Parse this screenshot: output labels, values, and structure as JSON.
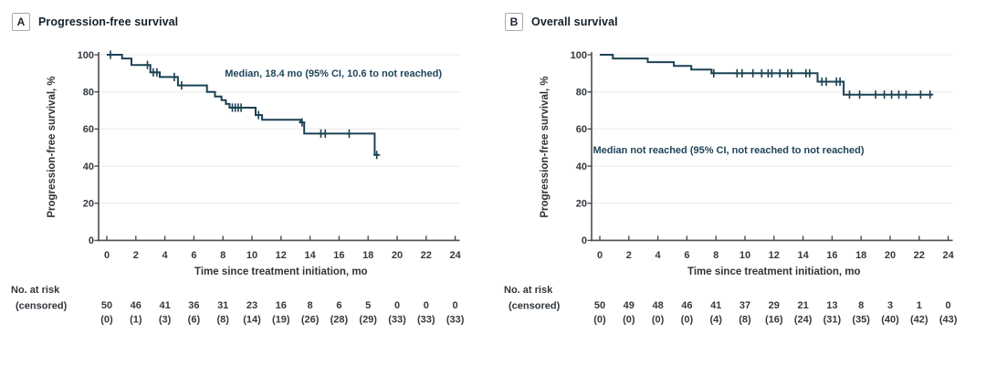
{
  "panels": [
    {
      "letter": "A",
      "title": "Progression-free survival",
      "annotation": "Median, 18.4 mo (95% CI, 10.6 to not reached)",
      "ylabel": "Progression-free survival, %",
      "xlabel": "Time since treatment initiation, mo",
      "no_at_risk_label": "No. at risk",
      "censored_label": "(censored)"
    },
    {
      "letter": "B",
      "title": "Overall survival",
      "annotation": "Median not reached (95% CI, not reached to not reached)",
      "ylabel": "Progression-free survival, %",
      "xlabel": "Time since treatment initiation, mo",
      "no_at_risk_label": "No. at risk",
      "censored_label": "(censored)"
    }
  ],
  "chart_data": [
    {
      "type": "line",
      "subtype": "kaplan-meier-step",
      "title": "Progression-free survival",
      "xlabel": "Time since treatment initiation, mo",
      "ylabel": "Progression-free survival, %",
      "xlim": [
        0,
        24
      ],
      "ylim": [
        0,
        100
      ],
      "xticks": [
        0,
        2,
        4,
        6,
        8,
        10,
        12,
        14,
        16,
        18,
        20,
        22,
        24
      ],
      "yticks": [
        0,
        20,
        40,
        60,
        80,
        100
      ],
      "grid": "horizontal",
      "annotation": "Median, 18.4 mo (95% CI, 10.6 to not reached)",
      "steps": [
        [
          0,
          100
        ],
        [
          1.05,
          98
        ],
        [
          1.7,
          94.5
        ],
        [
          3.0,
          90.5
        ],
        [
          3.65,
          88
        ],
        [
          4.9,
          83.5
        ],
        [
          6.9,
          80
        ],
        [
          7.45,
          77.5
        ],
        [
          7.9,
          75.5
        ],
        [
          8.2,
          73.5
        ],
        [
          8.45,
          71.5
        ],
        [
          10.25,
          67.5
        ],
        [
          10.7,
          65
        ],
        [
          13.35,
          63.5
        ],
        [
          13.6,
          57.5
        ],
        [
          18.45,
          46
        ]
      ],
      "curve_end": 18.75,
      "censor_marks": [
        [
          0.25,
          100
        ],
        [
          2.8,
          94.5
        ],
        [
          3.2,
          90.5
        ],
        [
          3.45,
          90.5
        ],
        [
          4.65,
          88
        ],
        [
          5.15,
          83.5
        ],
        [
          8.65,
          71.5
        ],
        [
          8.85,
          71.5
        ],
        [
          9.05,
          71.5
        ],
        [
          9.25,
          71.5
        ],
        [
          10.45,
          67.5
        ],
        [
          13.45,
          63.5
        ],
        [
          14.75,
          57.5
        ],
        [
          15.05,
          57.5
        ],
        [
          16.7,
          57.5
        ],
        [
          18.6,
          46
        ]
      ],
      "at_risk_times": [
        0,
        2,
        4,
        6,
        8,
        10,
        12,
        14,
        16,
        18,
        20,
        22,
        24
      ],
      "at_risk": [
        50,
        46,
        41,
        36,
        31,
        23,
        16,
        8,
        6,
        5,
        0,
        0,
        0
      ],
      "censored": [
        "(0)",
        "(1)",
        "(3)",
        "(6)",
        "(8)",
        "(14)",
        "(19)",
        "(26)",
        "(28)",
        "(29)",
        "(33)",
        "(33)",
        "(33)"
      ]
    },
    {
      "type": "line",
      "subtype": "kaplan-meier-step",
      "title": "Overall survival",
      "xlabel": "Time since treatment initiation, mo",
      "ylabel": "Progression-free survival, %",
      "xlim": [
        0,
        24
      ],
      "ylim": [
        0,
        100
      ],
      "xticks": [
        0,
        2,
        4,
        6,
        8,
        10,
        12,
        14,
        16,
        18,
        20,
        22,
        24
      ],
      "yticks": [
        0,
        20,
        40,
        60,
        80,
        100
      ],
      "grid": "horizontal",
      "annotation": "Median not reached (95% CI, not reached to not reached)",
      "steps": [
        [
          0,
          100
        ],
        [
          0.9,
          98
        ],
        [
          3.3,
          96
        ],
        [
          5.1,
          94
        ],
        [
          6.3,
          92
        ],
        [
          7.7,
          90
        ],
        [
          15.0,
          85.5
        ],
        [
          16.8,
          78.5
        ]
      ],
      "curve_end": 22.9,
      "censor_marks": [
        [
          7.85,
          90
        ],
        [
          9.45,
          90
        ],
        [
          9.8,
          90
        ],
        [
          10.55,
          90
        ],
        [
          11.15,
          90
        ],
        [
          11.6,
          90
        ],
        [
          11.85,
          90
        ],
        [
          12.4,
          90
        ],
        [
          12.95,
          90
        ],
        [
          13.2,
          90
        ],
        [
          14.2,
          90
        ],
        [
          14.45,
          90
        ],
        [
          15.3,
          85.5
        ],
        [
          15.6,
          85.5
        ],
        [
          16.3,
          85.5
        ],
        [
          16.55,
          85.5
        ],
        [
          17.2,
          78.5
        ],
        [
          17.9,
          78.5
        ],
        [
          19.0,
          78.5
        ],
        [
          19.6,
          78.5
        ],
        [
          20.1,
          78.5
        ],
        [
          20.6,
          78.5
        ],
        [
          21.1,
          78.5
        ],
        [
          22.1,
          78.5
        ],
        [
          22.75,
          78.5
        ]
      ],
      "at_risk_times": [
        0,
        2,
        4,
        6,
        8,
        10,
        12,
        14,
        16,
        18,
        20,
        22,
        24
      ],
      "at_risk": [
        50,
        49,
        48,
        46,
        41,
        37,
        29,
        21,
        13,
        8,
        3,
        1,
        0
      ],
      "censored": [
        "(0)",
        "(0)",
        "(0)",
        "(0)",
        "(4)",
        "(8)",
        "(16)",
        "(24)",
        "(31)",
        "(35)",
        "(40)",
        "(42)",
        "(43)"
      ]
    }
  ],
  "colors": {
    "curve": "#1b4254",
    "annotation": "#1f4459",
    "axis": "#4c4c4c",
    "grid": "#ebecec",
    "tick_text": "#33393f",
    "label_text": "#2f353a",
    "title_text": "#13202b"
  }
}
